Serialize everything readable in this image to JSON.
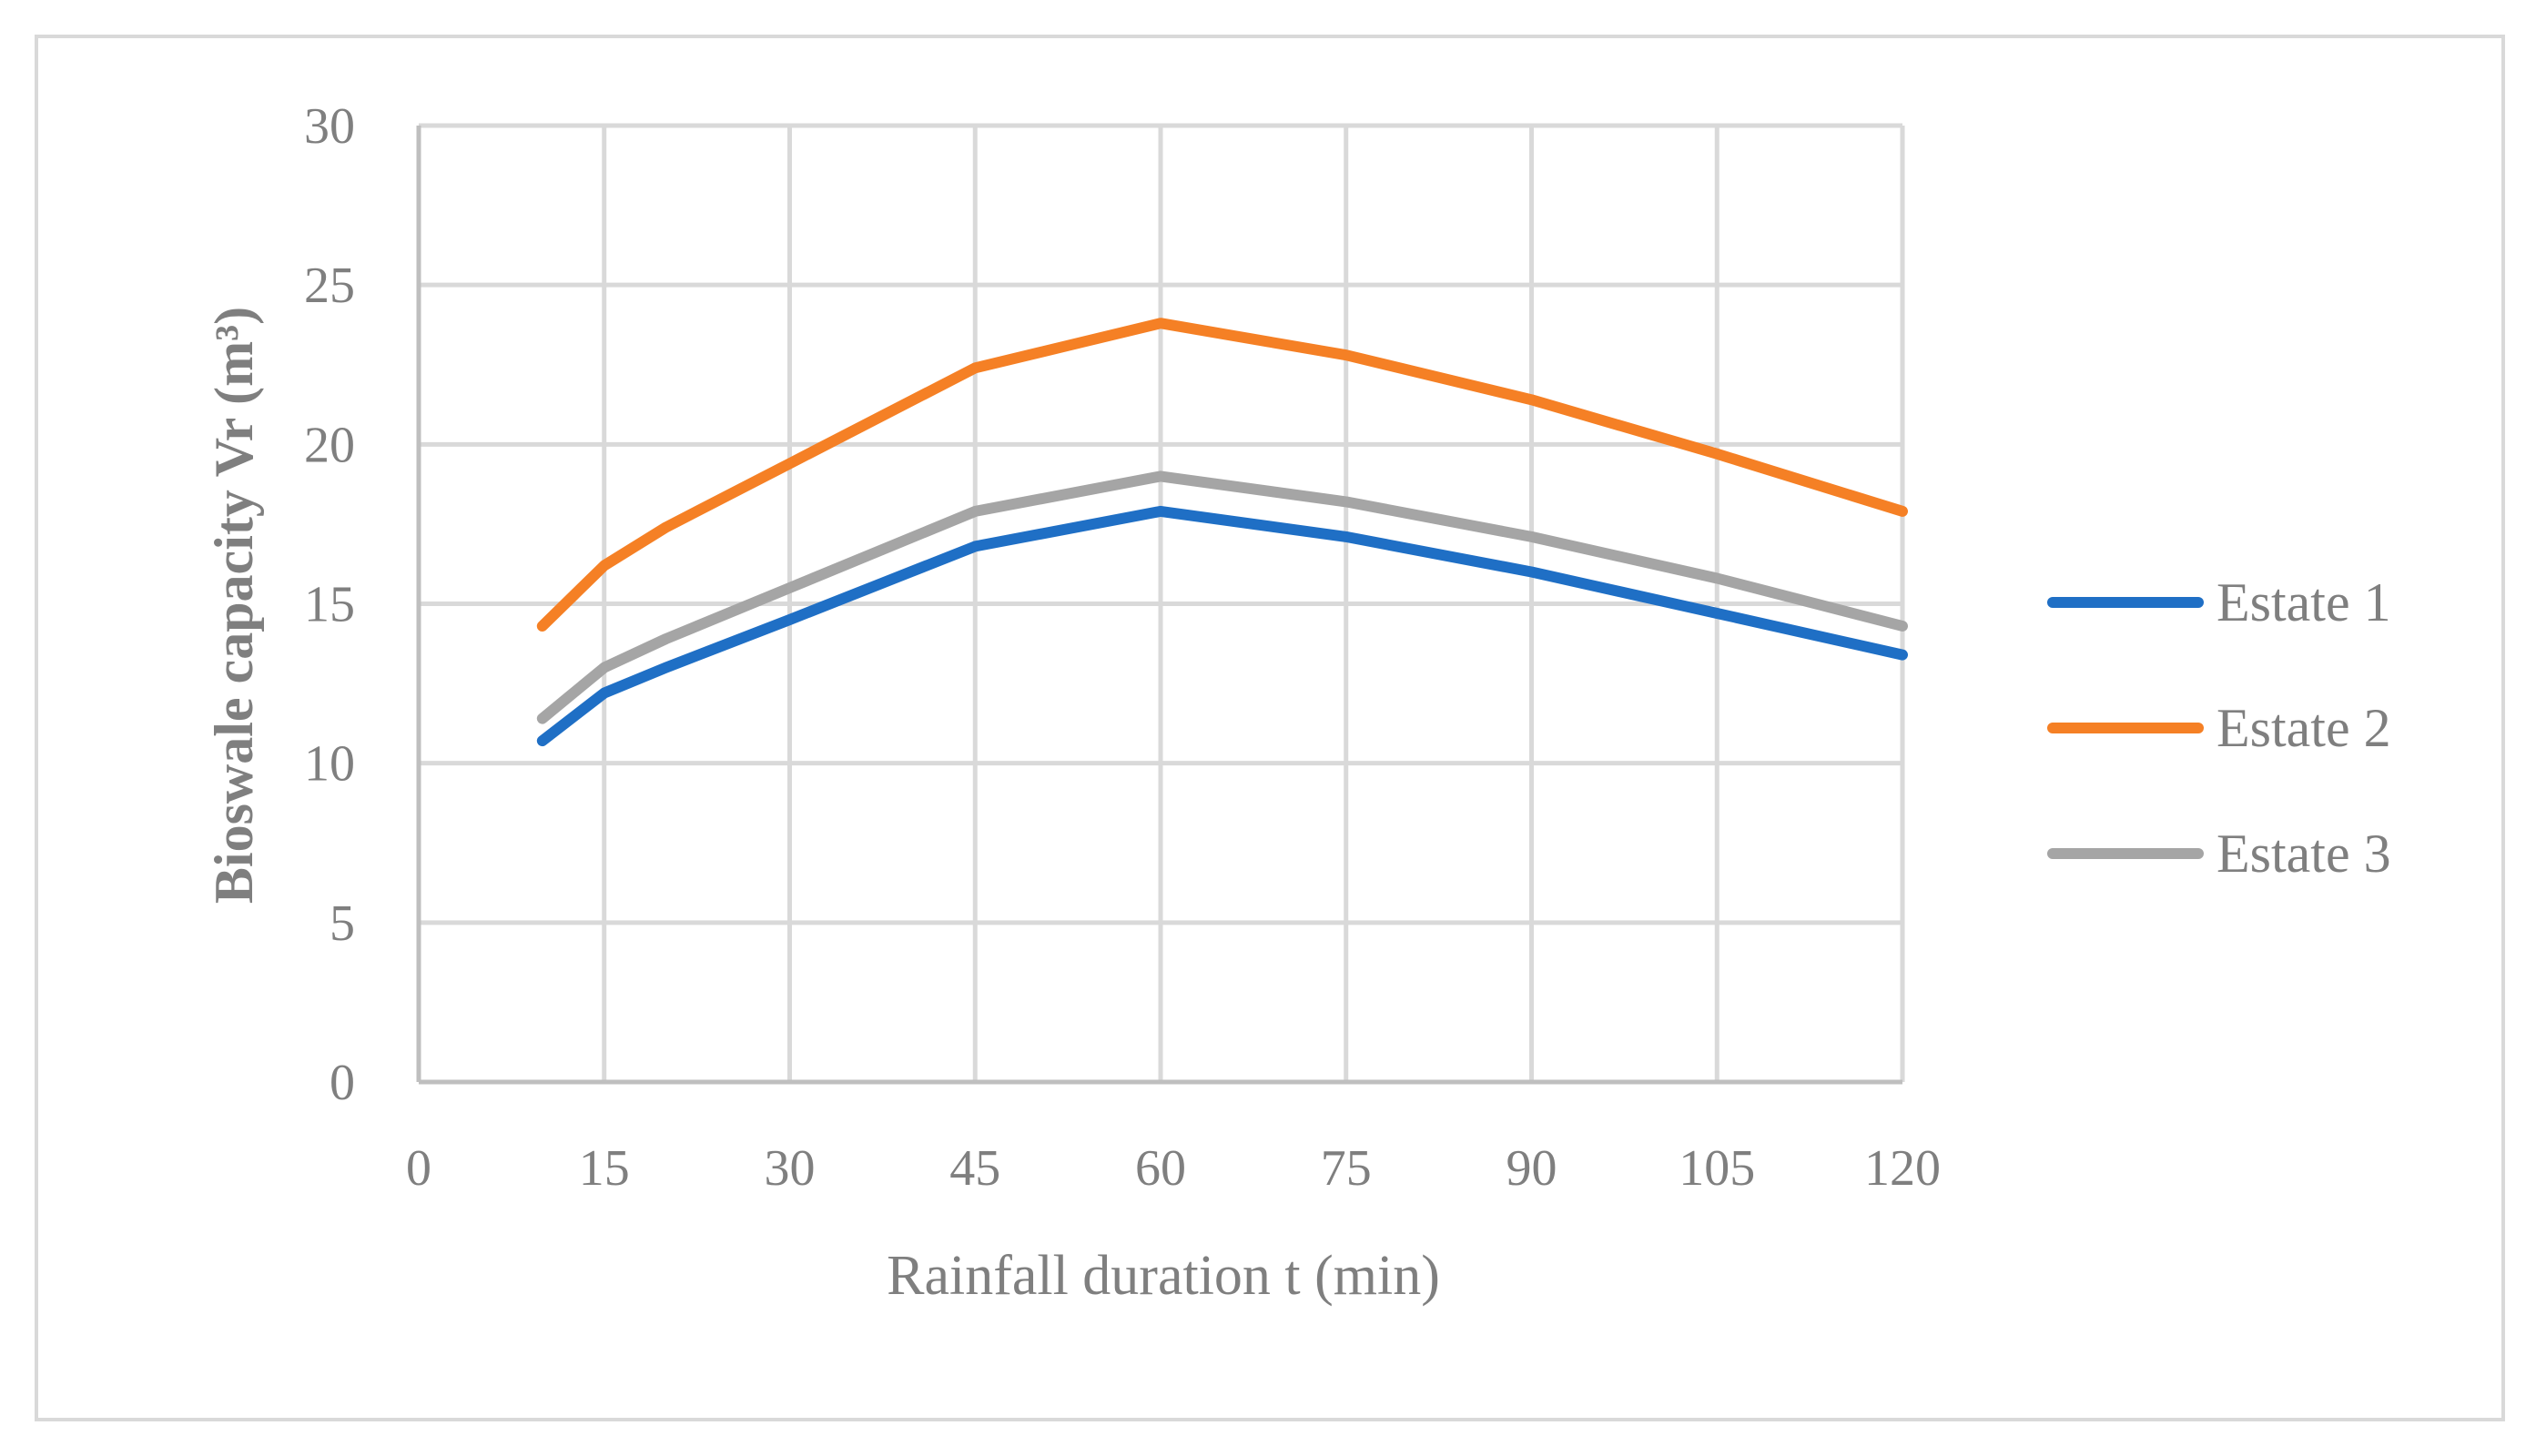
{
  "chart_data": {
    "type": "line",
    "title": "",
    "xlabel": "Rainfall duration t (min)",
    "ylabel": "Bioswale capacity Vr (m³)",
    "xlim": [
      0,
      120
    ],
    "ylim": [
      0,
      30
    ],
    "xticks": [
      0,
      15,
      30,
      45,
      60,
      75,
      90,
      105,
      120
    ],
    "yticks": [
      0,
      5,
      10,
      15,
      20,
      25,
      30
    ],
    "grid": true,
    "legend_position": "right",
    "x": [
      10,
      15,
      20,
      30,
      45,
      60,
      75,
      90,
      105,
      120
    ],
    "series": [
      {
        "name": "Estate 1",
        "color": "#1f6fc5",
        "values": [
          10.7,
          12.2,
          13.0,
          14.5,
          16.8,
          17.9,
          17.1,
          16.0,
          14.7,
          13.4
        ]
      },
      {
        "name": "Estate 2",
        "color": "#f58025",
        "values": [
          14.3,
          16.2,
          17.4,
          19.4,
          22.4,
          23.8,
          22.8,
          21.4,
          19.7,
          17.9
        ]
      },
      {
        "name": "Estate 3",
        "color": "#a5a5a5",
        "values": [
          11.4,
          13.0,
          13.9,
          15.5,
          17.9,
          19.0,
          18.2,
          17.1,
          15.8,
          14.3
        ]
      }
    ]
  }
}
